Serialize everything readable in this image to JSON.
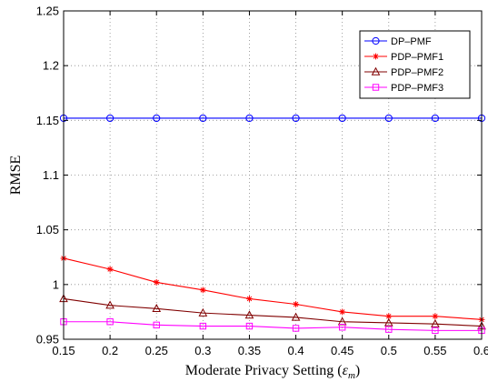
{
  "chart_data": {
    "type": "line",
    "title": "",
    "xlabel": "Moderate Privacy Setting (",
    "xlabel_symbol": "ε",
    "xlabel_subscript": "m",
    "xlabel_suffix": ")",
    "ylabel": "RMSE",
    "xlim": [
      0.15,
      0.6
    ],
    "ylim": [
      0.95,
      1.25
    ],
    "x": [
      0.15,
      0.2,
      0.25,
      0.3,
      0.35,
      0.4,
      0.45,
      0.5,
      0.55,
      0.6
    ],
    "x_ticks": [
      "0.15",
      "0.2",
      "0.25",
      "0.3",
      "0.35",
      "0.4",
      "0.45",
      "0.5",
      "0.55",
      "0.6"
    ],
    "y_ticks": [
      "0.95",
      "1",
      "1.05",
      "1.1",
      "1.15",
      "1.2",
      "1.25"
    ],
    "y_tick_values": [
      0.95,
      1.0,
      1.05,
      1.1,
      1.15,
      1.2,
      1.25
    ],
    "grid": true,
    "legend_position": "top-right",
    "series": [
      {
        "name": "DP–PMF",
        "color": "#0000ff",
        "marker": "circle",
        "values": [
          1.152,
          1.152,
          1.152,
          1.152,
          1.152,
          1.152,
          1.152,
          1.152,
          1.152,
          1.152
        ]
      },
      {
        "name": "PDP–PMF1",
        "color": "#ff0000",
        "marker": "star",
        "values": [
          1.024,
          1.014,
          1.002,
          0.995,
          0.987,
          0.982,
          0.975,
          0.971,
          0.971,
          0.968
        ]
      },
      {
        "name": "PDP–PMF2",
        "color": "#800000",
        "marker": "triangle",
        "values": [
          0.987,
          0.981,
          0.978,
          0.974,
          0.972,
          0.97,
          0.966,
          0.965,
          0.964,
          0.962
        ]
      },
      {
        "name": "PDP–PMF3",
        "color": "#ff00ff",
        "marker": "square",
        "values": [
          0.966,
          0.966,
          0.963,
          0.962,
          0.962,
          0.96,
          0.961,
          0.959,
          0.958,
          0.958
        ]
      }
    ]
  }
}
